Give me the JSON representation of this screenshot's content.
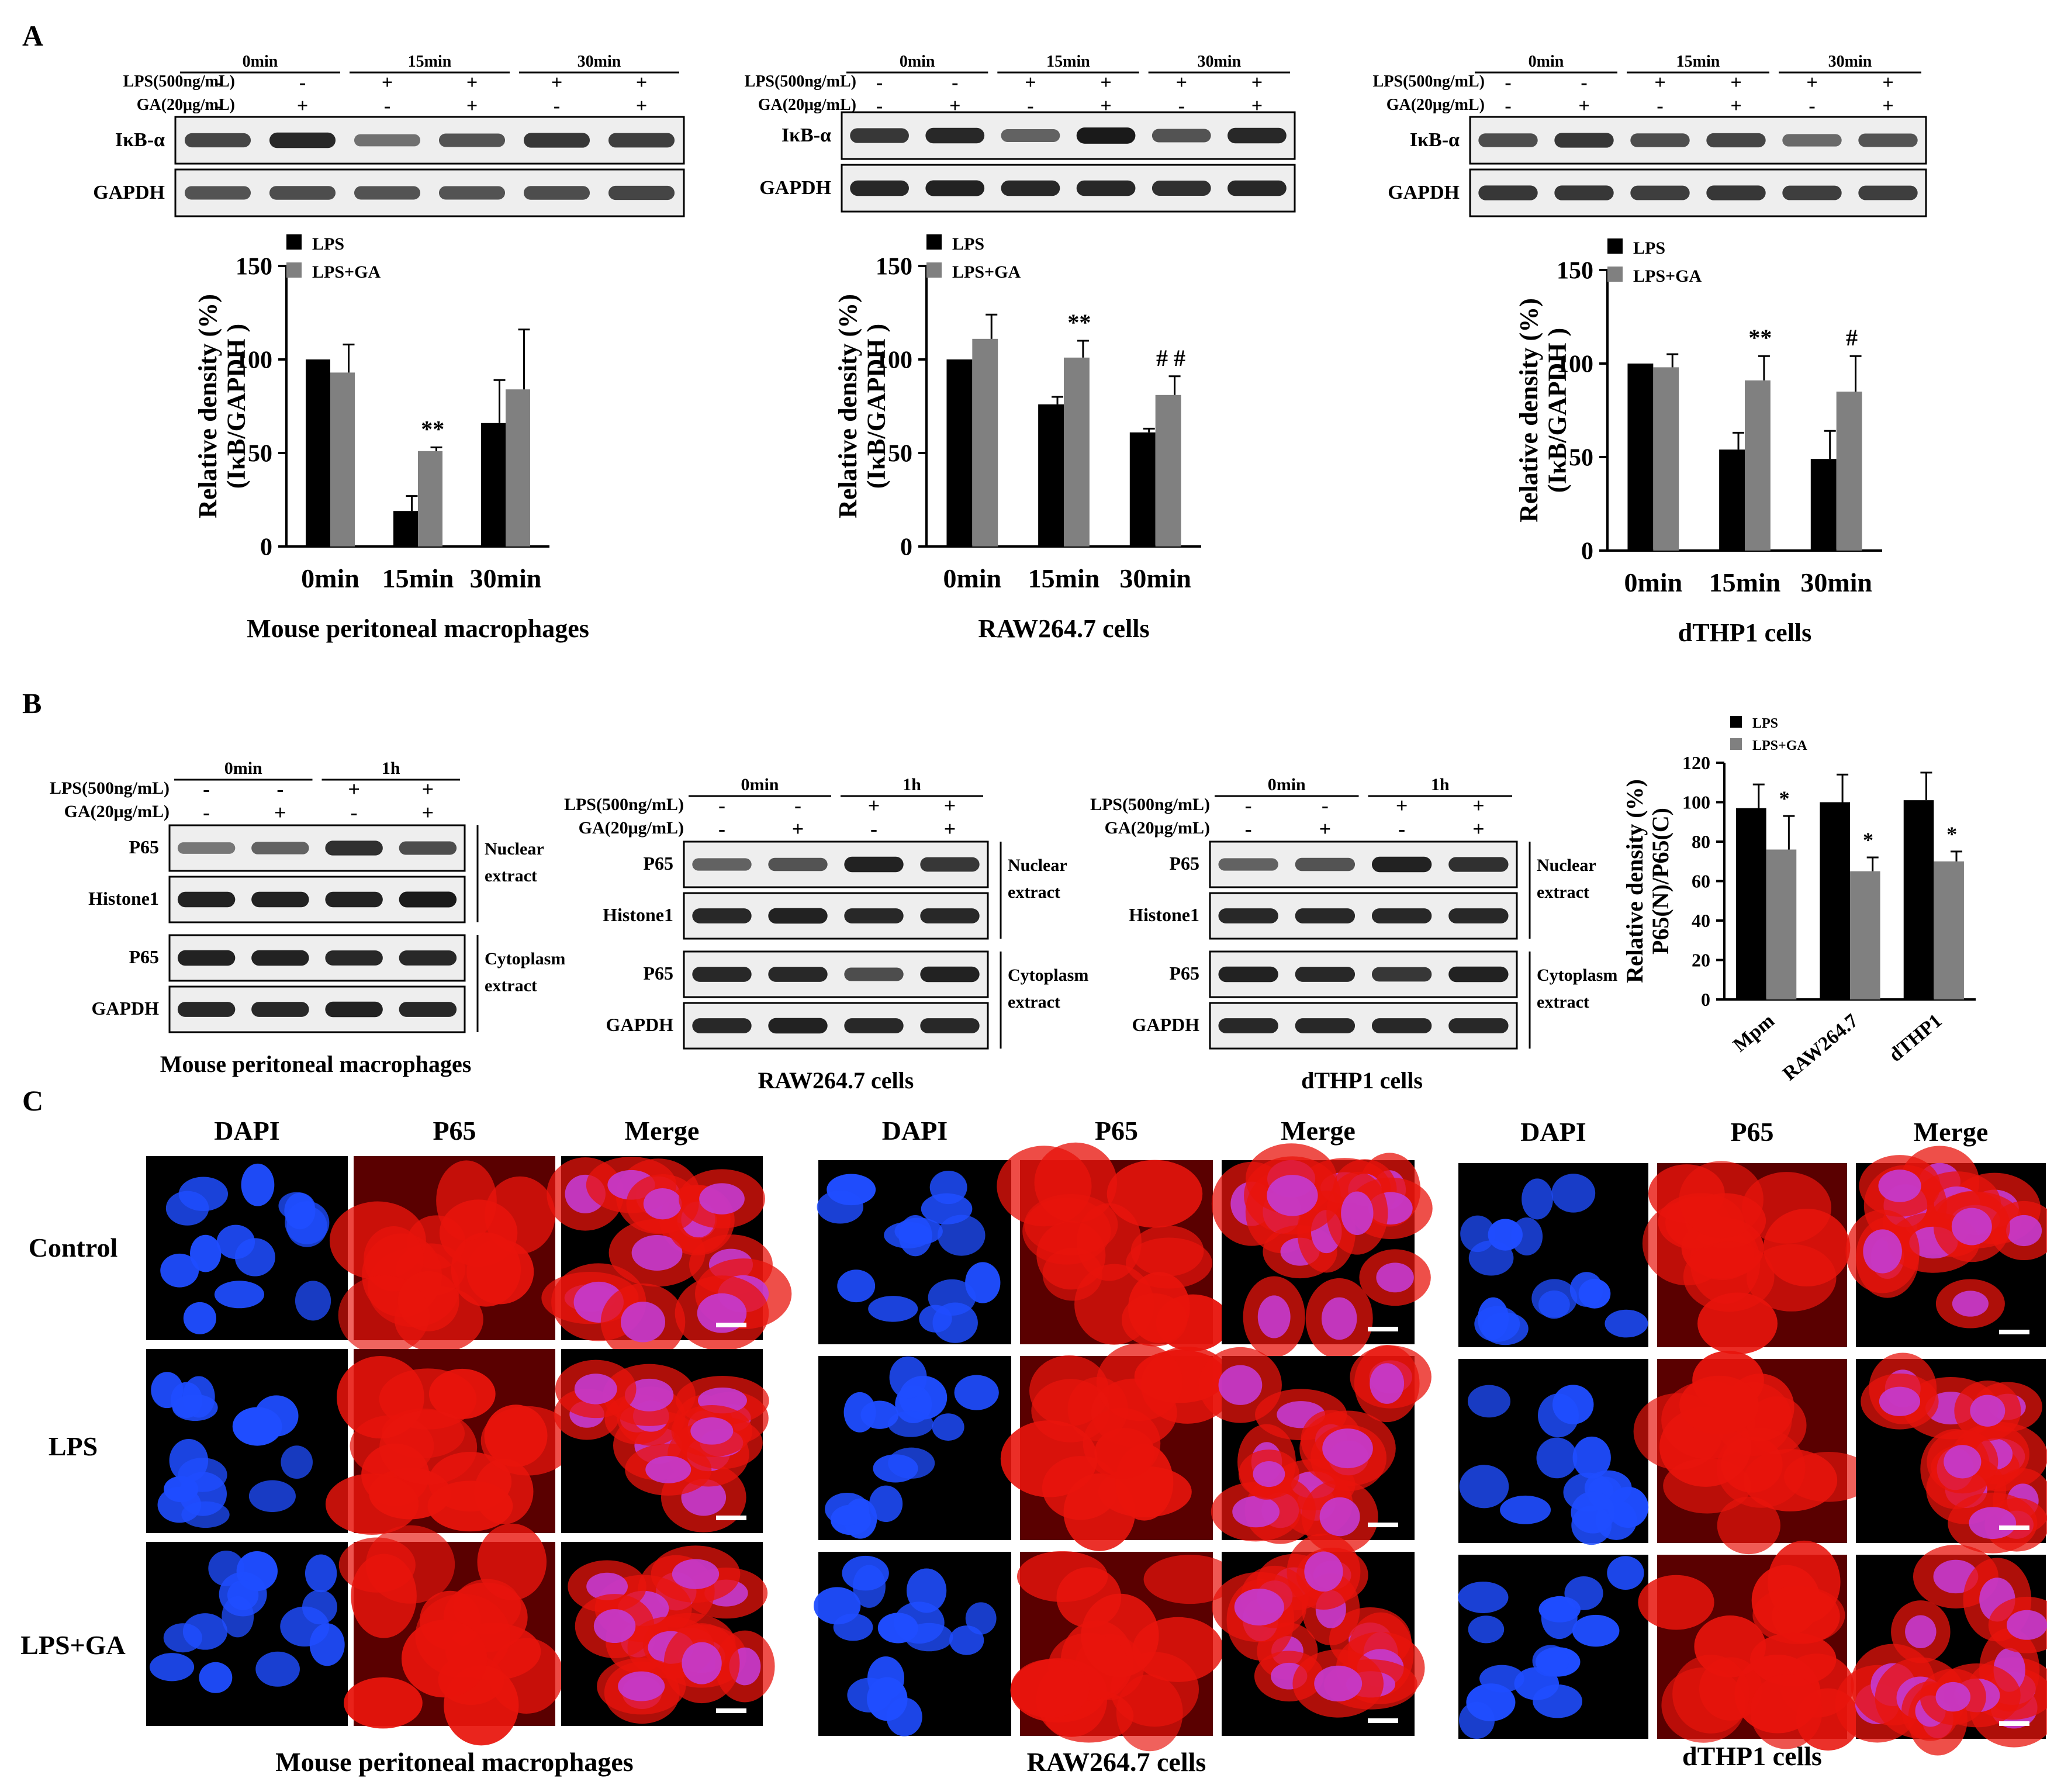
{
  "panel_letters": [
    "A",
    "B",
    "C"
  ],
  "treatment_rows": {
    "lps": "LPS(500ng/mL)",
    "ga": "GA(20μg/mL)"
  },
  "panel_a": {
    "timepoints": [
      "0min",
      "15min",
      "30min"
    ],
    "lps_signs": [
      "-",
      "-",
      "+",
      "+",
      "+",
      "+"
    ],
    "ga_signs": [
      "-",
      "+",
      "-",
      "+",
      "-",
      "+"
    ],
    "blot_labels": [
      "IκB-α",
      "GAPDH"
    ],
    "cells": [
      "Mouse peritoneal  macrophages",
      "RAW264.7  cells",
      "dTHP1  cells"
    ]
  },
  "panel_b": {
    "timepoints": [
      "0min",
      "1h"
    ],
    "lps_signs": [
      "-",
      "-",
      "+",
      "+"
    ],
    "ga_signs": [
      "-",
      "+",
      "-",
      "+"
    ],
    "blot_labels": [
      "P65",
      "Histone1",
      "P65",
      "GAPDH"
    ],
    "extract_labels": [
      "Nuclear",
      "extract",
      "Cytoplasm",
      "extract"
    ],
    "cells": [
      "Mouse peritoneal  macrophages",
      "RAW264.7 cells",
      "dTHP1  cells"
    ]
  },
  "panel_c": {
    "columns": [
      "DAPI",
      "P65",
      "Merge"
    ],
    "rows": [
      "Control",
      "LPS",
      "LPS+GA"
    ],
    "cells": [
      "Mouse peritoneal  macrophages",
      "RAW264.7  cells",
      "dTHP1  cells"
    ],
    "colors": {
      "dapi": "#1f4dff",
      "p65": "#e8140c",
      "merge": "#c43bd0"
    }
  },
  "chart_data": [
    {
      "type": "bar",
      "categories": [
        "0min",
        "15min",
        "30min"
      ],
      "series": [
        {
          "name": "LPS",
          "values": [
            100,
            19,
            66
          ],
          "errors": [
            0,
            8,
            23
          ],
          "color": "#000000"
        },
        {
          "name": "LPS+GA",
          "values": [
            93,
            51,
            84
          ],
          "errors": [
            15,
            2,
            32
          ],
          "color": "#808080"
        }
      ],
      "significance": [
        "",
        "**",
        ""
      ],
      "ylabel": "Relative density (%)",
      "ylabel2": "(IκB/GAPDH )",
      "ylim": [
        0,
        150
      ],
      "yticks": [
        0,
        50,
        100,
        150
      ],
      "legend": "top-left",
      "xlabel": "Mouse peritoneal  macrophages"
    },
    {
      "type": "bar",
      "categories": [
        "0min",
        "15min",
        "30min"
      ],
      "series": [
        {
          "name": "LPS",
          "values": [
            100,
            76,
            61
          ],
          "errors": [
            0,
            4,
            2
          ],
          "color": "#000000"
        },
        {
          "name": "LPS+GA",
          "values": [
            111,
            101,
            81
          ],
          "errors": [
            13,
            9,
            10
          ],
          "color": "#808080"
        }
      ],
      "significance": [
        "",
        "**",
        "# #"
      ],
      "ylabel": "Relative density (%)",
      "ylabel2": "(IκB/GAPDH )",
      "ylim": [
        0,
        150
      ],
      "yticks": [
        0,
        50,
        100,
        150
      ],
      "legend": "top-left",
      "xlabel": "RAW264.7  cells"
    },
    {
      "type": "bar",
      "categories": [
        "0min",
        "15min",
        "30min"
      ],
      "series": [
        {
          "name": "LPS",
          "values": [
            100,
            54,
            49
          ],
          "errors": [
            0,
            9,
            15
          ],
          "color": "#000000"
        },
        {
          "name": "LPS+GA",
          "values": [
            98,
            91,
            85
          ],
          "errors": [
            7,
            13,
            19
          ],
          "color": "#808080"
        }
      ],
      "significance": [
        "",
        "**",
        "#"
      ],
      "ylabel": "Relative density (%)",
      "ylabel2": "(IκB/GAPDH )",
      "ylim": [
        0,
        150
      ],
      "yticks": [
        0,
        50,
        100,
        150
      ],
      "legend": "top-left",
      "xlabel": "dTHP1  cells"
    },
    {
      "type": "bar",
      "categories": [
        "Mpm",
        "RAW264.7",
        "dTHP1"
      ],
      "series": [
        {
          "name": "LPS",
          "values": [
            97,
            100,
            101
          ],
          "errors": [
            12,
            14,
            14
          ],
          "color": "#000000"
        },
        {
          "name": "LPS+GA",
          "values": [
            76,
            65,
            70
          ],
          "errors": [
            17,
            7,
            5
          ],
          "color": "#808080"
        }
      ],
      "significance": [
        "*",
        "*",
        "*"
      ],
      "ylabel": "Relative density (%)",
      "ylabel2": "P65(N)/P65(C)",
      "ylim": [
        0,
        120
      ],
      "yticks": [
        0,
        20,
        40,
        60,
        80,
        100,
        120
      ],
      "legend": "top-left"
    }
  ]
}
